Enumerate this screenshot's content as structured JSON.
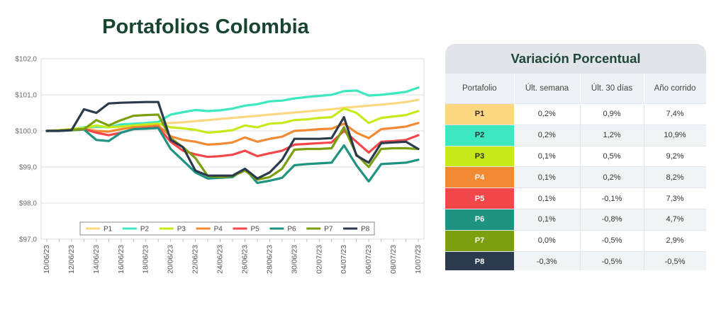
{
  "title": "Portafolios Colombia",
  "chart_data": {
    "type": "line",
    "title": "Portafolios Colombia",
    "xlabel": "",
    "ylabel": "",
    "ylim": [
      97.0,
      102.0
    ],
    "y_ticks": [
      "$97,0",
      "$98,0",
      "$99,0",
      "$100,0",
      "$101,0",
      "$102,0"
    ],
    "x_tick_labels": [
      "10/06/23",
      "12/06/23",
      "14/06/23",
      "16/06/23",
      "18/06/23",
      "20/06/23",
      "22/06/23",
      "24/06/23",
      "26/06/23",
      "28/06/23",
      "30/06/23",
      "02/07/23",
      "04/07/23",
      "06/07/23",
      "08/07/23",
      "10/07/23"
    ],
    "x": [
      "10/06/23",
      "11/06/23",
      "12/06/23",
      "13/06/23",
      "14/06/23",
      "15/06/23",
      "16/06/23",
      "17/06/23",
      "18/06/23",
      "19/06/23",
      "20/06/23",
      "21/06/23",
      "22/06/23",
      "23/06/23",
      "24/06/23",
      "25/06/23",
      "26/06/23",
      "27/06/23",
      "28/06/23",
      "29/06/23",
      "30/06/23",
      "01/07/23",
      "02/07/23",
      "03/07/23",
      "04/07/23",
      "05/07/23",
      "06/07/23",
      "07/07/23",
      "08/07/23",
      "09/07/23",
      "10/07/23"
    ],
    "grid": true,
    "legend": "bottom",
    "series": [
      {
        "name": "P1",
        "color": "#fcd883",
        "values": [
          100.0,
          100.02,
          100.05,
          100.08,
          100.1,
          100.12,
          100.14,
          100.16,
          100.18,
          100.2,
          100.22,
          100.24,
          100.27,
          100.3,
          100.33,
          100.36,
          100.39,
          100.42,
          100.45,
          100.48,
          100.51,
          100.54,
          100.57,
          100.6,
          100.64,
          100.67,
          100.7,
          100.73,
          100.76,
          100.8,
          100.86
        ]
      },
      {
        "name": "P2",
        "color": "#3de8c0",
        "values": [
          100.0,
          100.02,
          100.04,
          100.1,
          100.12,
          100.1,
          100.18,
          100.2,
          100.22,
          100.25,
          100.45,
          100.52,
          100.58,
          100.55,
          100.57,
          100.62,
          100.7,
          100.74,
          100.82,
          100.84,
          100.9,
          100.94,
          100.97,
          101.0,
          101.1,
          101.12,
          100.98,
          101.0,
          101.04,
          101.08,
          101.2
        ]
      },
      {
        "name": "P3",
        "color": "#c8ea1a",
        "values": [
          100.0,
          100.02,
          100.05,
          100.08,
          100.15,
          100.1,
          100.12,
          100.15,
          100.18,
          100.2,
          100.1,
          100.07,
          100.03,
          99.95,
          99.98,
          100.02,
          100.15,
          100.1,
          100.2,
          100.22,
          100.3,
          100.32,
          100.36,
          100.38,
          100.62,
          100.5,
          100.22,
          100.36,
          100.4,
          100.44,
          100.55
        ]
      },
      {
        "name": "P4",
        "color": "#f28a33",
        "values": [
          100.0,
          100.01,
          100.03,
          100.05,
          100.0,
          99.98,
          100.05,
          100.1,
          100.12,
          100.15,
          99.85,
          99.75,
          99.7,
          99.62,
          99.64,
          99.68,
          99.82,
          99.7,
          99.78,
          99.84,
          100.0,
          100.02,
          100.05,
          100.06,
          100.2,
          99.95,
          99.8,
          100.05,
          100.08,
          100.12,
          100.22
        ]
      },
      {
        "name": "P5",
        "color": "#f4474a",
        "values": [
          100.0,
          100.01,
          100.03,
          100.05,
          99.95,
          99.88,
          99.95,
          100.05,
          100.08,
          100.1,
          99.7,
          99.45,
          99.35,
          99.28,
          99.3,
          99.34,
          99.45,
          99.3,
          99.38,
          99.45,
          99.62,
          99.64,
          99.66,
          99.68,
          100.0,
          99.7,
          99.4,
          99.7,
          99.72,
          99.75,
          99.88
        ]
      },
      {
        "name": "P6",
        "color": "#1e9480",
        "values": [
          100.0,
          100.0,
          100.02,
          100.04,
          99.75,
          99.72,
          99.95,
          100.05,
          100.06,
          100.08,
          99.5,
          99.18,
          98.85,
          98.68,
          98.7,
          98.72,
          98.95,
          98.56,
          98.62,
          98.7,
          99.05,
          99.08,
          99.1,
          99.12,
          99.6,
          99.05,
          98.6,
          99.08,
          99.1,
          99.12,
          99.2
        ]
      },
      {
        "name": "P7",
        "color": "#7b9f0f",
        "values": [
          100.0,
          100.01,
          100.03,
          100.05,
          100.3,
          100.15,
          100.3,
          100.42,
          100.44,
          100.45,
          99.8,
          99.55,
          99.25,
          98.75,
          98.72,
          98.75,
          98.9,
          98.65,
          98.72,
          98.95,
          99.48,
          99.5,
          99.5,
          99.52,
          100.1,
          99.35,
          99.0,
          99.5,
          99.52,
          99.52,
          99.5
        ]
      },
      {
        "name": "P8",
        "color": "#2b3a4c",
        "values": [
          100.0,
          100.0,
          100.02,
          100.6,
          100.5,
          100.76,
          100.78,
          100.79,
          100.8,
          100.8,
          99.75,
          99.55,
          98.9,
          98.76,
          98.76,
          98.76,
          98.95,
          98.68,
          98.85,
          99.2,
          99.78,
          99.78,
          99.78,
          99.8,
          100.38,
          99.32,
          99.12,
          99.66,
          99.68,
          99.7,
          99.5
        ]
      }
    ]
  },
  "table": {
    "title": "Variación Porcentual",
    "headers": [
      "Portafolio",
      "Últ. semana",
      "Últ. 30 días",
      "Año corrido"
    ],
    "rows": [
      {
        "name": "P1",
        "color": "#fcd883",
        "text_color": "#2b2b2b",
        "week": "0,2%",
        "month": "0,9%",
        "ytd": "7,4%"
      },
      {
        "name": "P2",
        "color": "#3de8c0",
        "text_color": "#2b2b2b",
        "week": "0,2%",
        "month": "1,2%",
        "ytd": "10,9%"
      },
      {
        "name": "P3",
        "color": "#c8ea1a",
        "text_color": "#2b2b2b",
        "week": "0,1%",
        "month": "0,5%",
        "ytd": "9,2%"
      },
      {
        "name": "P4",
        "color": "#f28a33",
        "text_color": "#ffffff",
        "week": "0,1%",
        "month": "0,2%",
        "ytd": "8,2%"
      },
      {
        "name": "P5",
        "color": "#f4474a",
        "text_color": "#ffffff",
        "week": "0,1%",
        "month": "-0,1%",
        "ytd": "7,3%"
      },
      {
        "name": "P6",
        "color": "#1e9480",
        "text_color": "#ffffff",
        "week": "0,1%",
        "month": "-0,8%",
        "ytd": "4,7%"
      },
      {
        "name": "P7",
        "color": "#7b9f0f",
        "text_color": "#ffffff",
        "week": "0,0%",
        "month": "-0,5%",
        "ytd": "2,9%"
      },
      {
        "name": "P8",
        "color": "#2b3a4c",
        "text_color": "#ffffff",
        "week": "-0,3%",
        "month": "-0,5%",
        "ytd": "-0,5%"
      }
    ]
  }
}
